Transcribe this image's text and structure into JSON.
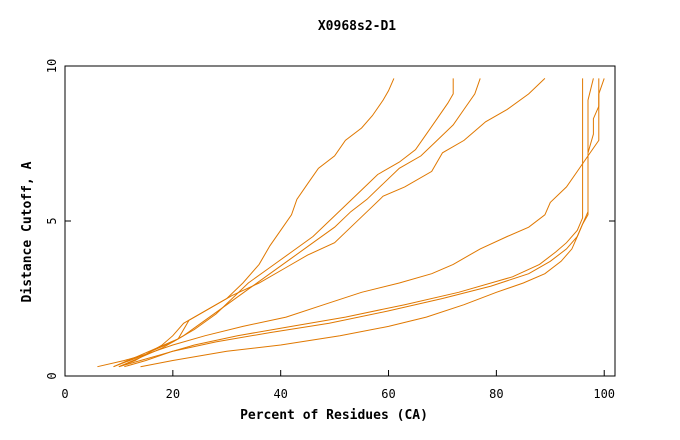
{
  "chart_data": {
    "type": "line",
    "title": "X0968s2-D1",
    "xlabel": "Percent of Residues (CA)",
    "ylabel": "Distance Cutoff, A",
    "xlim": [
      0,
      102
    ],
    "ylim": [
      0,
      10
    ],
    "x_ticks": [
      "0",
      "20",
      "40",
      "60",
      "80",
      "100"
    ],
    "y_ticks": [
      "0",
      "5",
      "10"
    ],
    "grid": false,
    "legend": "none",
    "line_color": "#e07800",
    "series": [
      {
        "points": [
          [
            9,
            0.3
          ],
          [
            12,
            0.5
          ],
          [
            15,
            0.7
          ],
          [
            18,
            1.0
          ],
          [
            20,
            1.3
          ],
          [
            22,
            1.7
          ],
          [
            26,
            2.1
          ],
          [
            30,
            2.5
          ],
          [
            33,
            3.0
          ],
          [
            36,
            3.6
          ],
          [
            38,
            4.2
          ],
          [
            40,
            4.7
          ],
          [
            42,
            5.2
          ],
          [
            43,
            5.7
          ],
          [
            45,
            6.2
          ],
          [
            47,
            6.7
          ],
          [
            50,
            7.1
          ],
          [
            52,
            7.6
          ],
          [
            55,
            8.0
          ],
          [
            57,
            8.4
          ],
          [
            59,
            8.9
          ],
          [
            60,
            9.2
          ],
          [
            61,
            9.6
          ]
        ]
      },
      {
        "points": [
          [
            10,
            0.3
          ],
          [
            13,
            0.5
          ],
          [
            16,
            0.8
          ],
          [
            20,
            1.1
          ],
          [
            24,
            1.5
          ],
          [
            28,
            2.0
          ],
          [
            31,
            2.5
          ],
          [
            34,
            3.0
          ],
          [
            38,
            3.5
          ],
          [
            42,
            4.0
          ],
          [
            46,
            4.5
          ],
          [
            49,
            5.0
          ],
          [
            52,
            5.5
          ],
          [
            55,
            6.0
          ],
          [
            58,
            6.5
          ],
          [
            62,
            6.9
          ],
          [
            65,
            7.3
          ],
          [
            67,
            7.8
          ],
          [
            69,
            8.3
          ],
          [
            71,
            8.8
          ],
          [
            72,
            9.1
          ],
          [
            72,
            9.6
          ]
        ]
      },
      {
        "points": [
          [
            10,
            0.3
          ],
          [
            14,
            0.6
          ],
          [
            18,
            0.9
          ],
          [
            22,
            1.3
          ],
          [
            26,
            1.8
          ],
          [
            30,
            2.3
          ],
          [
            34,
            2.8
          ],
          [
            38,
            3.3
          ],
          [
            42,
            3.8
          ],
          [
            46,
            4.3
          ],
          [
            50,
            4.8
          ],
          [
            53,
            5.3
          ],
          [
            56,
            5.7
          ],
          [
            59,
            6.2
          ],
          [
            62,
            6.7
          ],
          [
            66,
            7.1
          ],
          [
            69,
            7.6
          ],
          [
            72,
            8.1
          ],
          [
            74,
            8.6
          ],
          [
            76,
            9.1
          ],
          [
            77,
            9.6
          ]
        ]
      },
      {
        "points": [
          [
            9,
            0.3
          ],
          [
            13,
            0.6
          ],
          [
            17,
            0.9
          ],
          [
            21,
            1.2
          ],
          [
            23,
            1.8
          ],
          [
            27,
            2.2
          ],
          [
            31,
            2.6
          ],
          [
            36,
            3.0
          ],
          [
            41,
            3.5
          ],
          [
            45,
            3.9
          ],
          [
            50,
            4.3
          ],
          [
            53,
            4.8
          ],
          [
            56,
            5.3
          ],
          [
            59,
            5.8
          ],
          [
            63,
            6.1
          ],
          [
            68,
            6.6
          ],
          [
            70,
            7.2
          ],
          [
            74,
            7.6
          ],
          [
            78,
            8.2
          ],
          [
            82,
            8.6
          ],
          [
            86,
            9.1
          ],
          [
            89,
            9.6
          ]
        ]
      },
      {
        "points": [
          [
            6,
            0.3
          ],
          [
            11,
            0.5
          ],
          [
            15,
            0.7
          ],
          [
            20,
            1.0
          ],
          [
            26,
            1.3
          ],
          [
            33,
            1.6
          ],
          [
            41,
            1.9
          ],
          [
            48,
            2.3
          ],
          [
            55,
            2.7
          ],
          [
            62,
            3.0
          ],
          [
            68,
            3.3
          ],
          [
            72,
            3.6
          ],
          [
            77,
            4.1
          ],
          [
            82,
            4.5
          ],
          [
            86,
            4.8
          ],
          [
            89,
            5.2
          ],
          [
            90,
            5.6
          ],
          [
            93,
            6.1
          ],
          [
            95,
            6.6
          ],
          [
            97,
            7.1
          ],
          [
            99,
            7.6
          ],
          [
            99,
            8.1
          ],
          [
            99,
            8.6
          ],
          [
            99,
            9.1
          ],
          [
            99,
            9.6
          ]
        ]
      },
      {
        "points": [
          [
            10,
            0.3
          ],
          [
            14,
            0.5
          ],
          [
            18,
            0.7
          ],
          [
            24,
            1.0
          ],
          [
            32,
            1.3
          ],
          [
            42,
            1.6
          ],
          [
            52,
            1.9
          ],
          [
            63,
            2.3
          ],
          [
            73,
            2.7
          ],
          [
            83,
            3.2
          ],
          [
            88,
            3.6
          ],
          [
            91,
            4.0
          ],
          [
            93,
            4.3
          ],
          [
            95,
            4.7
          ],
          [
            96,
            5.1
          ],
          [
            96,
            5.6
          ],
          [
            96,
            6.1
          ],
          [
            96,
            6.6
          ],
          [
            96,
            7.1
          ],
          [
            96,
            7.6
          ],
          [
            96,
            8.1
          ],
          [
            96,
            8.6
          ],
          [
            96,
            9.1
          ],
          [
            96,
            9.6
          ]
        ]
      },
      {
        "points": [
          [
            11,
            0.3
          ],
          [
            15,
            0.5
          ],
          [
            20,
            0.8
          ],
          [
            28,
            1.1
          ],
          [
            38,
            1.4
          ],
          [
            49,
            1.7
          ],
          [
            60,
            2.1
          ],
          [
            70,
            2.5
          ],
          [
            79,
            2.9
          ],
          [
            86,
            3.3
          ],
          [
            90,
            3.7
          ],
          [
            93,
            4.1
          ],
          [
            95,
            4.5
          ],
          [
            96,
            4.9
          ],
          [
            97,
            5.3
          ],
          [
            97,
            5.8
          ],
          [
            97,
            6.3
          ],
          [
            97,
            6.8
          ],
          [
            97,
            7.3
          ],
          [
            97,
            7.8
          ],
          [
            97,
            8.3
          ],
          [
            97,
            8.9
          ],
          [
            98,
            9.6
          ]
        ]
      },
      {
        "points": [
          [
            14,
            0.3
          ],
          [
            20,
            0.5
          ],
          [
            30,
            0.8
          ],
          [
            40,
            1.0
          ],
          [
            51,
            1.3
          ],
          [
            60,
            1.6
          ],
          [
            67,
            1.9
          ],
          [
            74,
            2.3
          ],
          [
            80,
            2.7
          ],
          [
            85,
            3.0
          ],
          [
            89,
            3.3
          ],
          [
            92,
            3.7
          ],
          [
            94,
            4.1
          ],
          [
            95,
            4.5
          ],
          [
            96,
            4.9
          ],
          [
            97,
            5.2
          ],
          [
            97,
            5.7
          ],
          [
            97,
            6.2
          ],
          [
            97,
            6.7
          ],
          [
            97,
            7.2
          ],
          [
            98,
            7.8
          ],
          [
            98,
            8.3
          ],
          [
            99,
            8.7
          ],
          [
            99,
            9.1
          ],
          [
            100,
            9.6
          ]
        ]
      }
    ]
  }
}
